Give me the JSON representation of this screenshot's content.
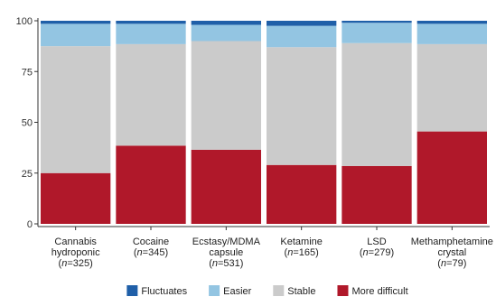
{
  "chart_data": {
    "type": "bar",
    "stacked": true,
    "categories": [
      {
        "lines": [
          "Cannabis",
          "hydroponic"
        ],
        "n_prefix": "(",
        "n_var": "n",
        "n_value": "=325)"
      },
      {
        "lines": [
          "Cocaine"
        ],
        "n_prefix": "(",
        "n_var": "n",
        "n_value": "=345)"
      },
      {
        "lines": [
          "Ecstasy/MDMA",
          "capsule"
        ],
        "n_prefix": "(",
        "n_var": "n",
        "n_value": "=531)"
      },
      {
        "lines": [
          "Ketamine"
        ],
        "n_prefix": "(",
        "n_var": "n",
        "n_value": "=165)"
      },
      {
        "lines": [
          "LSD"
        ],
        "n_prefix": "(",
        "n_var": "n",
        "n_value": "=279)"
      },
      {
        "lines": [
          "Methamphetamine",
          "crystal"
        ],
        "n_prefix": "(",
        "n_var": "n",
        "n_value": "=79)"
      }
    ],
    "series": [
      {
        "name": "More difficult",
        "color": "#b0182a",
        "values": [
          25,
          38.5,
          36.5,
          29,
          28.5,
          45.5
        ]
      },
      {
        "name": "Stable",
        "color": "#cbcbcb",
        "values": [
          62.5,
          50,
          53.5,
          58,
          60.5,
          43
        ]
      },
      {
        "name": "Easier",
        "color": "#93c5e2",
        "values": [
          11,
          10,
          8,
          10.5,
          10,
          10
        ]
      },
      {
        "name": "Fluctuates",
        "color": "#1f5fa8",
        "values": [
          1.5,
          1.5,
          2,
          2.5,
          1,
          1.5
        ]
      }
    ],
    "legend_order": [
      "Fluctuates",
      "Easier",
      "Stable",
      "More difficult"
    ],
    "ylim": [
      0,
      100
    ],
    "yticks": [
      0,
      25,
      50,
      75,
      100
    ],
    "xlabel": "",
    "ylabel": "",
    "legend_position": "bottom",
    "grid": false
  }
}
